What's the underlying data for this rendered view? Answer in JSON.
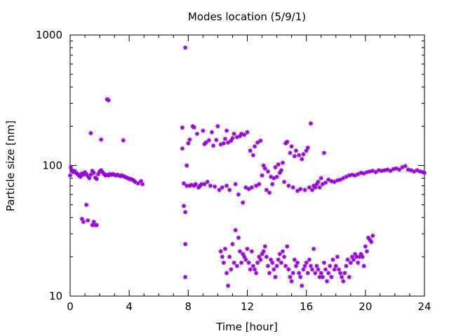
{
  "chart_data": {
    "type": "scatter",
    "title": "Modes location (5/9/1)",
    "xlabel": "Time [hour]",
    "ylabel": "Particle size [nm]",
    "xlim": [
      0,
      24
    ],
    "ylim": [
      10,
      1000
    ],
    "yscale": "log",
    "x_ticks": [
      0,
      4,
      8,
      12,
      16,
      20,
      24
    ],
    "x_tick_labels": [
      "0",
      "4",
      "8",
      "12",
      "16",
      "20",
      "24"
    ],
    "y_ticks": [
      10,
      100,
      1000
    ],
    "y_tick_labels": [
      "10",
      "100",
      "1000"
    ],
    "grid": false,
    "legend": false,
    "marker": "asterisk",
    "color": "#9400d3",
    "series": [
      {
        "name": "",
        "points": [
          [
            0.0,
            84
          ],
          [
            0.05,
            97
          ],
          [
            0.1,
            92
          ],
          [
            0.2,
            89
          ],
          [
            0.3,
            91
          ],
          [
            0.4,
            88
          ],
          [
            0.5,
            86
          ],
          [
            0.6,
            84
          ],
          [
            0.7,
            82
          ],
          [
            0.8,
            87
          ],
          [
            0.9,
            85
          ],
          [
            1.0,
            89
          ],
          [
            1.1,
            86
          ],
          [
            1.2,
            83
          ],
          [
            1.3,
            80
          ],
          [
            1.4,
            85
          ],
          [
            1.5,
            91
          ],
          [
            1.6,
            88
          ],
          [
            1.7,
            81
          ],
          [
            1.8,
            79
          ],
          [
            1.9,
            86
          ],
          [
            2.0,
            90
          ],
          [
            2.1,
            92
          ],
          [
            2.2,
            89
          ],
          [
            2.3,
            86
          ],
          [
            2.4,
            84
          ],
          [
            2.5,
            85
          ],
          [
            2.6,
            84
          ],
          [
            2.7,
            86
          ],
          [
            2.8,
            85
          ],
          [
            2.9,
            86
          ],
          [
            3.0,
            85
          ],
          [
            3.1,
            84
          ],
          [
            3.2,
            85
          ],
          [
            3.3,
            84
          ],
          [
            3.4,
            83
          ],
          [
            3.5,
            84
          ],
          [
            3.6,
            83
          ],
          [
            3.7,
            82
          ],
          [
            3.8,
            81
          ],
          [
            3.9,
            80
          ],
          [
            4.0,
            79
          ],
          [
            4.1,
            79
          ],
          [
            4.2,
            78
          ],
          [
            4.3,
            77
          ],
          [
            4.4,
            75
          ],
          [
            4.6,
            73
          ],
          [
            4.8,
            76
          ],
          [
            4.9,
            72
          ],
          [
            0.8,
            39
          ],
          [
            0.9,
            37
          ],
          [
            1.1,
            50
          ],
          [
            1.2,
            38
          ],
          [
            1.5,
            35
          ],
          [
            1.6,
            37
          ],
          [
            1.7,
            35
          ],
          [
            1.8,
            35
          ],
          [
            1.4,
            177
          ],
          [
            2.1,
            158
          ],
          [
            2.5,
            322
          ],
          [
            2.6,
            316
          ],
          [
            3.6,
            156
          ],
          [
            7.6,
            135
          ],
          [
            7.6,
            195
          ],
          [
            7.7,
            73
          ],
          [
            7.7,
            49
          ],
          [
            7.8,
            14
          ],
          [
            7.8,
            25
          ],
          [
            7.8,
            44
          ],
          [
            7.8,
            800
          ],
          [
            7.9,
            100
          ],
          [
            7.9,
            70
          ],
          [
            8.0,
            148
          ],
          [
            8.1,
            158
          ],
          [
            8.1,
            70
          ],
          [
            8.2,
            71
          ],
          [
            8.3,
            200
          ],
          [
            8.4,
            196
          ],
          [
            8.4,
            70
          ],
          [
            8.5,
            72
          ],
          [
            8.6,
            175
          ],
          [
            8.7,
            68
          ],
          [
            8.8,
            70
          ],
          [
            8.9,
            72
          ],
          [
            9.0,
            185
          ],
          [
            9.1,
            146
          ],
          [
            9.1,
            72
          ],
          [
            9.2,
            150
          ],
          [
            9.3,
            75
          ],
          [
            9.4,
            156
          ],
          [
            9.5,
            70
          ],
          [
            9.6,
            180
          ],
          [
            9.7,
            142
          ],
          [
            9.8,
            69
          ],
          [
            9.9,
            157
          ],
          [
            10.0,
            200
          ],
          [
            10.1,
            65
          ],
          [
            10.2,
            145
          ],
          [
            10.3,
            68
          ],
          [
            10.4,
            148
          ],
          [
            10.5,
            160
          ],
          [
            10.6,
            185
          ],
          [
            10.6,
            70
          ],
          [
            10.7,
            150
          ],
          [
            10.8,
            65
          ],
          [
            10.9,
            155
          ],
          [
            11.0,
            162
          ],
          [
            11.1,
            175
          ],
          [
            11.2,
            72
          ],
          [
            11.3,
            165
          ],
          [
            11.4,
            60
          ],
          [
            11.5,
            168
          ],
          [
            11.6,
            175
          ],
          [
            11.7,
            52
          ],
          [
            11.8,
            172
          ],
          [
            11.9,
            68
          ],
          [
            12.0,
            180
          ],
          [
            12.1,
            66
          ],
          [
            12.2,
            130
          ],
          [
            12.3,
            68
          ],
          [
            12.4,
            120
          ],
          [
            12.5,
            140
          ],
          [
            12.6,
            70
          ],
          [
            12.7,
            150
          ],
          [
            12.8,
            72
          ],
          [
            12.9,
            155
          ],
          [
            13.0,
            84
          ],
          [
            13.1,
            100
          ],
          [
            13.2,
            95
          ],
          [
            13.3,
            65
          ],
          [
            13.4,
            90
          ],
          [
            13.5,
            62
          ],
          [
            13.6,
            82
          ],
          [
            13.7,
            72
          ],
          [
            13.8,
            80
          ],
          [
            13.9,
            97
          ],
          [
            14.0,
            82
          ],
          [
            14.1,
            102
          ],
          [
            14.2,
            88
          ],
          [
            14.3,
            92
          ],
          [
            14.4,
            105
          ],
          [
            14.5,
            75
          ],
          [
            14.6,
            148
          ],
          [
            14.7,
            152
          ],
          [
            14.8,
            70
          ],
          [
            14.9,
            125
          ],
          [
            15.0,
            140
          ],
          [
            15.1,
            68
          ],
          [
            15.2,
            118
          ],
          [
            15.3,
            130
          ],
          [
            15.4,
            64
          ],
          [
            15.5,
            120
          ],
          [
            15.6,
            66
          ],
          [
            15.7,
            112
          ],
          [
            15.8,
            122
          ],
          [
            15.9,
            65
          ],
          [
            16.0,
            130
          ],
          [
            16.1,
            137
          ],
          [
            16.2,
            68
          ],
          [
            16.3,
            210
          ],
          [
            16.4,
            65
          ],
          [
            16.5,
            70
          ],
          [
            16.6,
            68
          ],
          [
            16.7,
            72
          ],
          [
            16.8,
            75
          ],
          [
            16.9,
            68
          ],
          [
            17.0,
            80
          ],
          [
            17.1,
            72
          ],
          [
            17.2,
            125
          ],
          [
            17.3,
            74
          ],
          [
            17.5,
            78
          ],
          [
            17.7,
            76
          ],
          [
            17.9,
            75
          ],
          [
            18.1,
            77
          ],
          [
            18.3,
            78
          ],
          [
            18.5,
            80
          ],
          [
            18.7,
            82
          ],
          [
            18.9,
            84
          ],
          [
            19.1,
            85
          ],
          [
            19.3,
            84
          ],
          [
            19.5,
            86
          ],
          [
            19.7,
            88
          ],
          [
            19.9,
            87
          ],
          [
            20.1,
            89
          ],
          [
            20.3,
            90
          ],
          [
            20.5,
            91
          ],
          [
            20.7,
            89
          ],
          [
            20.9,
            92
          ],
          [
            21.1,
            91
          ],
          [
            21.3,
            92
          ],
          [
            21.5,
            93
          ],
          [
            21.7,
            91
          ],
          [
            21.9,
            94
          ],
          [
            22.1,
            95
          ],
          [
            22.3,
            93
          ],
          [
            22.5,
            97
          ],
          [
            22.7,
            99
          ],
          [
            22.9,
            93
          ],
          [
            23.1,
            92
          ],
          [
            23.3,
            90
          ],
          [
            23.5,
            92
          ],
          [
            23.7,
            90
          ],
          [
            23.9,
            89
          ],
          [
            24.0,
            88
          ],
          [
            10.2,
            22
          ],
          [
            10.3,
            20
          ],
          [
            10.4,
            18
          ],
          [
            10.5,
            23
          ],
          [
            10.6,
            15
          ],
          [
            10.7,
            12
          ],
          [
            10.8,
            20
          ],
          [
            10.9,
            16
          ],
          [
            11.0,
            25
          ],
          [
            11.1,
            18
          ],
          [
            11.2,
            32
          ],
          [
            11.3,
            17
          ],
          [
            11.4,
            28
          ],
          [
            11.5,
            22
          ],
          [
            11.6,
            18
          ],
          [
            11.7,
            21
          ],
          [
            11.8,
            20
          ],
          [
            11.9,
            19
          ],
          [
            12.0,
            23
          ],
          [
            12.1,
            18
          ],
          [
            12.2,
            16
          ],
          [
            12.3,
            22
          ],
          [
            12.4,
            17
          ],
          [
            12.5,
            16
          ],
          [
            12.6,
            15
          ],
          [
            12.7,
            18
          ],
          [
            12.8,
            20
          ],
          [
            12.9,
            19
          ],
          [
            13.0,
            21
          ],
          [
            13.1,
            22
          ],
          [
            13.2,
            24
          ],
          [
            13.3,
            20
          ],
          [
            13.4,
            17
          ],
          [
            13.5,
            15
          ],
          [
            13.6,
            19
          ],
          [
            13.7,
            18
          ],
          [
            13.8,
            16
          ],
          [
            13.9,
            14
          ],
          [
            14.0,
            17
          ],
          [
            14.1,
            19
          ],
          [
            14.2,
            21
          ],
          [
            14.3,
            18
          ],
          [
            14.4,
            22
          ],
          [
            14.5,
            20
          ],
          [
            14.6,
            17
          ],
          [
            14.7,
            24
          ],
          [
            14.8,
            16
          ],
          [
            14.9,
            14
          ],
          [
            15.0,
            13
          ],
          [
            15.1,
            15
          ],
          [
            15.2,
            19
          ],
          [
            15.3,
            17
          ],
          [
            15.4,
            18
          ],
          [
            15.5,
            15
          ],
          [
            15.6,
            14
          ],
          [
            15.7,
            12
          ],
          [
            15.8,
            16
          ],
          [
            15.9,
            17
          ],
          [
            16.0,
            18
          ],
          [
            16.1,
            15
          ],
          [
            16.2,
            19
          ],
          [
            16.3,
            17
          ],
          [
            16.4,
            16
          ],
          [
            16.5,
            23
          ],
          [
            16.6,
            15
          ],
          [
            16.7,
            17
          ],
          [
            16.8,
            16
          ],
          [
            16.9,
            14
          ],
          [
            17.0,
            15
          ],
          [
            17.1,
            14
          ],
          [
            17.2,
            18
          ],
          [
            17.3,
            16
          ],
          [
            17.4,
            13
          ],
          [
            17.5,
            15
          ],
          [
            17.6,
            17
          ],
          [
            17.7,
            14
          ],
          [
            17.8,
            19
          ],
          [
            17.9,
            16
          ],
          [
            18.0,
            17
          ],
          [
            18.1,
            20
          ],
          [
            18.2,
            16
          ],
          [
            18.3,
            15
          ],
          [
            18.4,
            14
          ],
          [
            18.5,
            13
          ],
          [
            18.6,
            15
          ],
          [
            18.7,
            17
          ],
          [
            18.8,
            19
          ],
          [
            18.9,
            14
          ],
          [
            19.0,
            18
          ],
          [
            19.1,
            20
          ],
          [
            19.2,
            19
          ],
          [
            19.3,
            21
          ],
          [
            19.4,
            20
          ],
          [
            19.5,
            18
          ],
          [
            19.6,
            20
          ],
          [
            19.7,
            21
          ],
          [
            19.8,
            20
          ],
          [
            19.9,
            17
          ],
          [
            20.0,
            24
          ],
          [
            20.1,
            22
          ],
          [
            20.2,
            28
          ],
          [
            20.3,
            27
          ],
          [
            20.4,
            26
          ],
          [
            20.5,
            29
          ]
        ]
      }
    ]
  }
}
